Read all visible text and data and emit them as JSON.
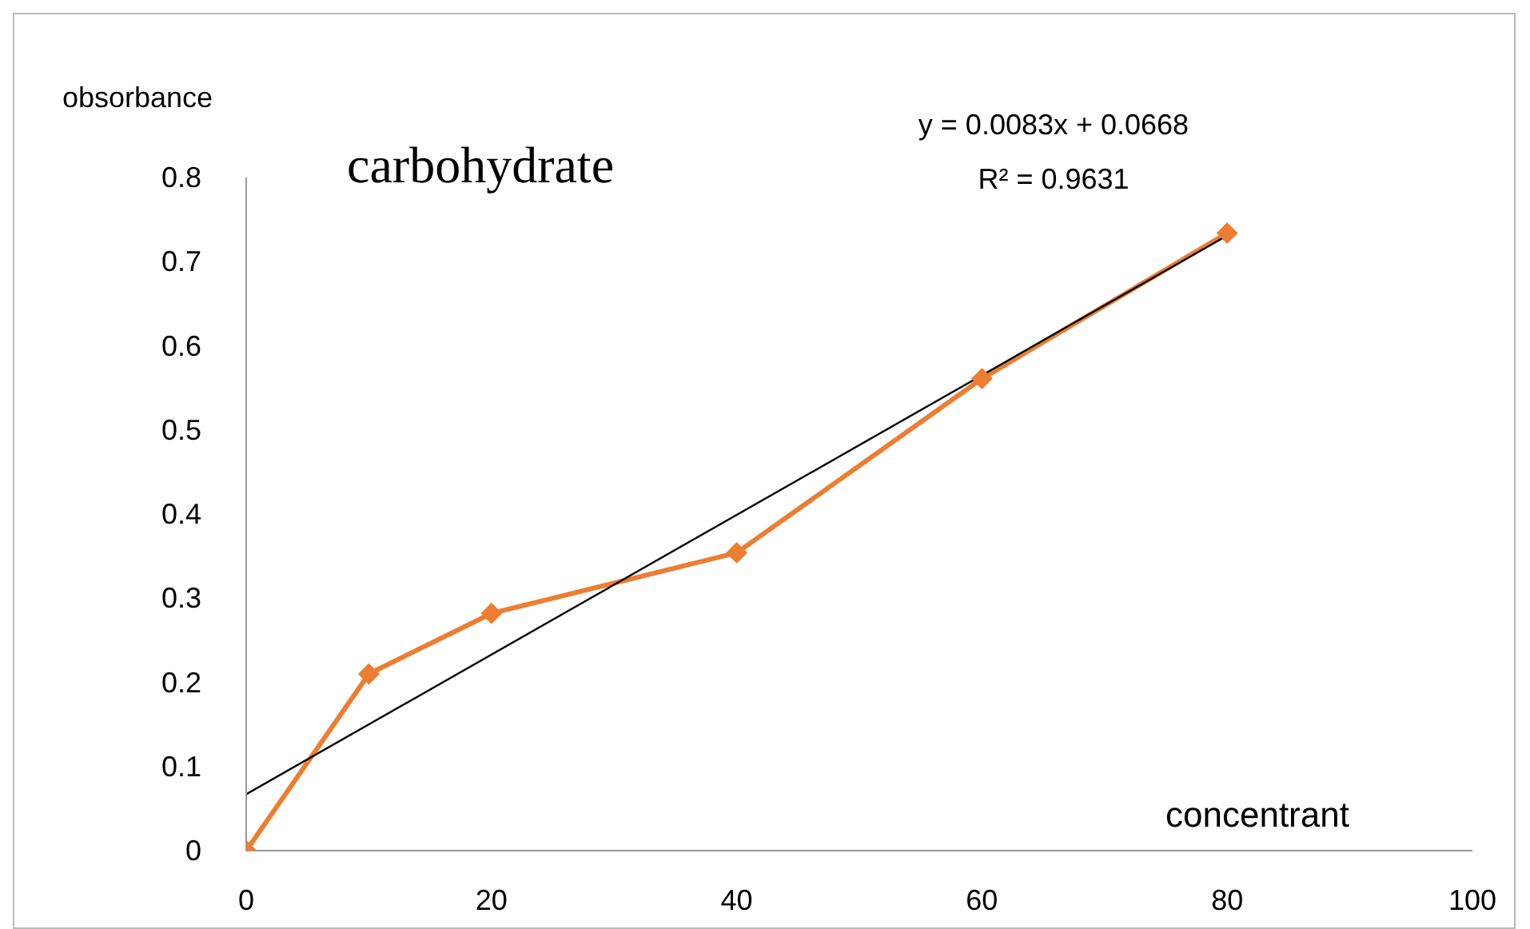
{
  "chart_data": {
    "type": "line",
    "title": "carbohydrate",
    "xlabel": "concentrant",
    "ylabel": "obsorbance",
    "annotations": [
      "y = 0.0083x + 0.0668",
      "R² = 0.9631"
    ],
    "x": [
      0,
      10,
      20,
      40,
      60,
      80
    ],
    "series": [
      {
        "color": "#ed7d31",
        "values": [
          0,
          0.21,
          0.282,
          0.354,
          0.561,
          0.734
        ]
      },
      {
        "type": "line",
        "x": [
          0,
          80
        ],
        "values": [
          0.067,
          0.731
        ],
        "color": "#000000",
        "marker": "none"
      }
    ],
    "xlim": [
      0,
      100
    ],
    "xticks": [
      0,
      20,
      40,
      60,
      80,
      100
    ],
    "ylim": [
      0,
      0.8
    ],
    "yticks": [
      0,
      0.1,
      0.2,
      0.3,
      0.4,
      0.5,
      0.6,
      0.7,
      0.8
    ],
    "grid": false,
    "marker": "diamond",
    "line_style": "solid"
  }
}
